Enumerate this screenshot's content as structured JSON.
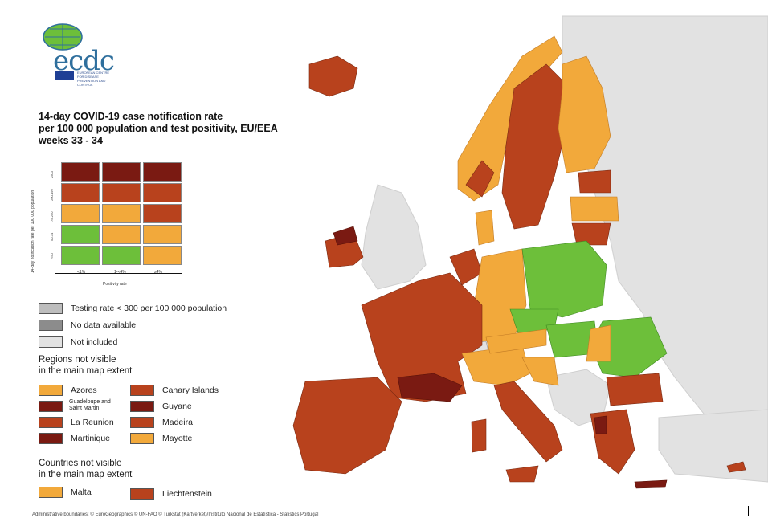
{
  "logo": {
    "text": "ecdc",
    "subtext": "EUROPEAN CENTRE FOR DISEASE PREVENTION AND CONTROL"
  },
  "title": {
    "line1": "14-day COVID-19 case notification rate",
    "line2": "per 100 000 population and test positivity, EU/EEA",
    "line3": "weeks 33 - 34"
  },
  "matrix": {
    "y_axis_label": "14-day notification rate per 100 000 population",
    "x_axis_label": "Positivity rate",
    "x_ticks": [
      "<1%",
      "1-<4%",
      "≥4%"
    ],
    "y_ticks": [
      "≥500",
      "200-499",
      "75-200",
      "50-74",
      "<50"
    ],
    "colors": [
      [
        "#7a1a12",
        "#7a1a12",
        "#7a1a12"
      ],
      [
        "#b8421d",
        "#b8421d",
        "#b8421d"
      ],
      [
        "#f2a93b",
        "#f2a93b",
        "#b8421d"
      ],
      [
        "#6dbf3a",
        "#f2a93b",
        "#f2a93b"
      ],
      [
        "#6dbf3a",
        "#6dbf3a",
        "#f2a93b"
      ]
    ]
  },
  "legend": {
    "grey_items": [
      {
        "label": "Testing rate < 300 per 100 000 population",
        "color": "#bdbdbd"
      },
      {
        "label": "No data available",
        "color": "#8c8c8c"
      },
      {
        "label": "Not included",
        "color": "#e2e2e2"
      }
    ],
    "regions_title_1": "Regions not visible",
    "regions_title_2": "in the main map extent",
    "regions": [
      {
        "label": "Azores",
        "color": "#f2a93b"
      },
      {
        "label": "Canary Islands",
        "color": "#b8421d"
      },
      {
        "label": "Guadeloupe and Saint Martin",
        "color": "#7a1a12"
      },
      {
        "label": "Guyane",
        "color": "#7a1a12"
      },
      {
        "label": "La Reunion",
        "color": "#b8421d"
      },
      {
        "label": "Madeira",
        "color": "#b8421d"
      },
      {
        "label": "Martinique",
        "color": "#7a1a12"
      },
      {
        "label": "Mayotte",
        "color": "#f2a93b"
      }
    ],
    "countries_title_1": "Countries not visible",
    "countries_title_2": "in the main map extent",
    "countries": [
      {
        "label": "Malta",
        "color": "#f2a93b"
      },
      {
        "label": "Liechtenstein",
        "color": "#b8421d"
      }
    ]
  },
  "colors": {
    "dark_red": "#7a1a12",
    "red": "#b8421d",
    "orange": "#f2a93b",
    "green": "#6dbf3a",
    "not_included": "#e2e2e2",
    "sea": "#ffffff"
  },
  "footer": "Administrative boundaries: © EuroGeographics © UN-FAO © Turkstat (Kartverket)/Instituto Nacional de Estatística - Statistics Portugal"
}
